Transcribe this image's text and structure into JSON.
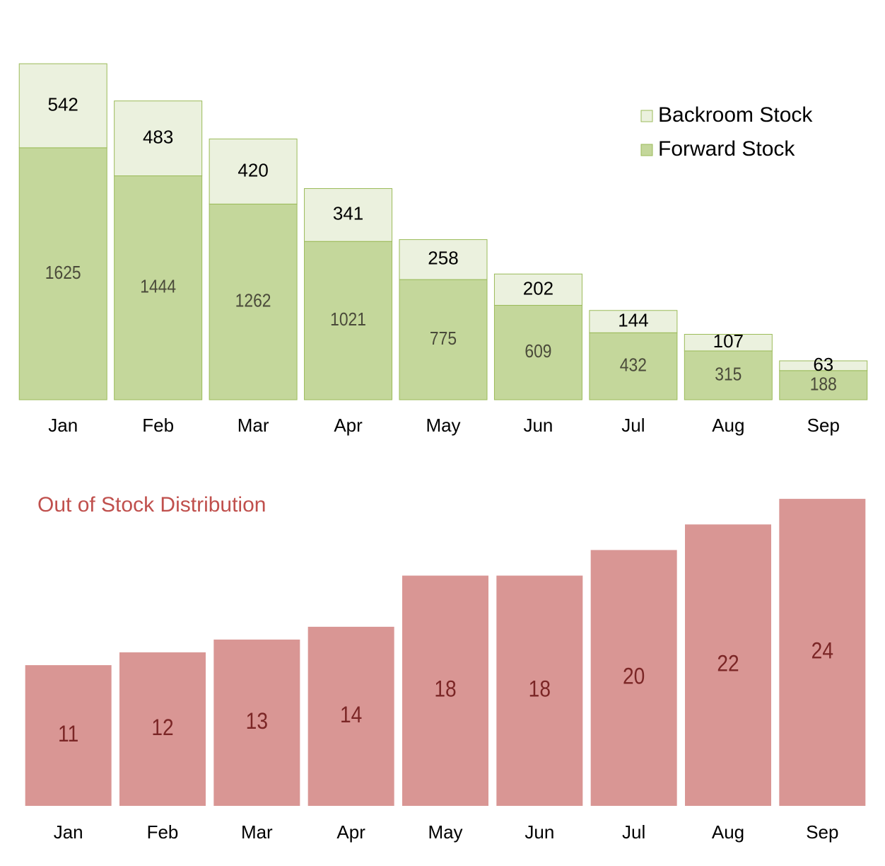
{
  "chart_data": [
    {
      "type": "stacked_bar",
      "categories": [
        "Jan",
        "Feb",
        "Mar",
        "Apr",
        "May",
        "Jun",
        "Jul",
        "Aug",
        "Sep"
      ],
      "series": [
        {
          "name": "Forward Stock",
          "color": "#c4d79b",
          "values": [
            1625,
            1444,
            1262,
            1021,
            775,
            609,
            432,
            315,
            188
          ]
        },
        {
          "name": "Backroom Stock",
          "color": "#ebf1de",
          "values": [
            542,
            483,
            420,
            341,
            258,
            202,
            144,
            107,
            63
          ]
        }
      ],
      "ylim": [
        0,
        2400
      ],
      "legend": "top-right",
      "grid": false
    },
    {
      "type": "bar",
      "title": "Out of Stock Distribution",
      "categories": [
        "Jan",
        "Feb",
        "Mar",
        "Apr",
        "May",
        "Jun",
        "Jul",
        "Aug",
        "Sep"
      ],
      "values": [
        11,
        12,
        13,
        14,
        18,
        18,
        20,
        22,
        24
      ],
      "color": "#d99694",
      "ylim": [
        0,
        25
      ],
      "grid": false
    }
  ]
}
